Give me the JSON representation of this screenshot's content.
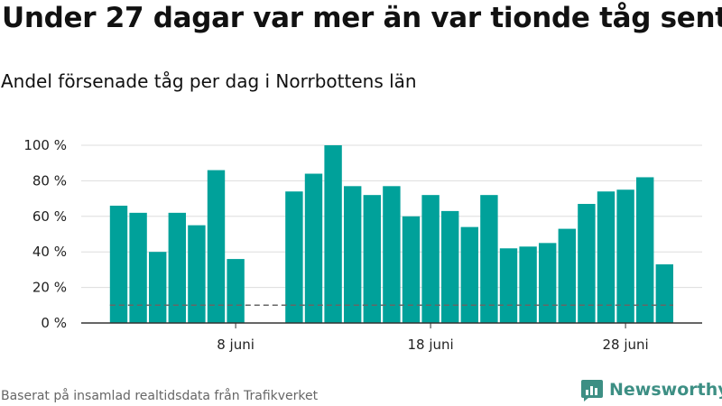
{
  "title": "Under 27 dagar var mer än var tionde tåg sent",
  "subtitle": "Andel försenade tåg per dag i Norrbottens län",
  "footer": "Baserat på insamlad realtidsdata från Trafikverket",
  "logo_text": "Newsworthy",
  "colors": {
    "bar": "#00a19a",
    "grid": "#dddddd",
    "axis": "#333333",
    "reference": "#666666",
    "logo": "#3d8f84"
  },
  "chart_data": {
    "type": "bar",
    "title": "Under 27 dagar var mer än var tionde tåg sent",
    "subtitle": "Andel försenade tåg per dag i Norrbottens län",
    "xlabel": "",
    "ylabel": "",
    "x_tick_labels": [
      "8 juni",
      "18 juni",
      "28 juni"
    ],
    "x_tick_days": [
      8,
      18,
      28
    ],
    "y_ticks": [
      0,
      20,
      40,
      60,
      80,
      100
    ],
    "y_tick_labels": [
      "0 %",
      "20 %",
      "40 %",
      "60 %",
      "80 %",
      "100 %"
    ],
    "ylim": [
      0,
      100
    ],
    "grid": true,
    "reference_line": {
      "value": 10,
      "style": "dashed"
    },
    "days": [
      2,
      3,
      4,
      5,
      6,
      7,
      8,
      9,
      10,
      11,
      12,
      13,
      14,
      15,
      16,
      17,
      18,
      19,
      20,
      21,
      22,
      23,
      24,
      25,
      26,
      27,
      28,
      29,
      30
    ],
    "values": [
      66,
      62,
      40,
      62,
      55,
      86,
      36,
      null,
      null,
      74,
      84,
      100,
      77,
      72,
      77,
      60,
      72,
      63,
      54,
      72,
      42,
      43,
      45,
      53,
      67,
      74,
      75,
      82,
      33
    ]
  }
}
